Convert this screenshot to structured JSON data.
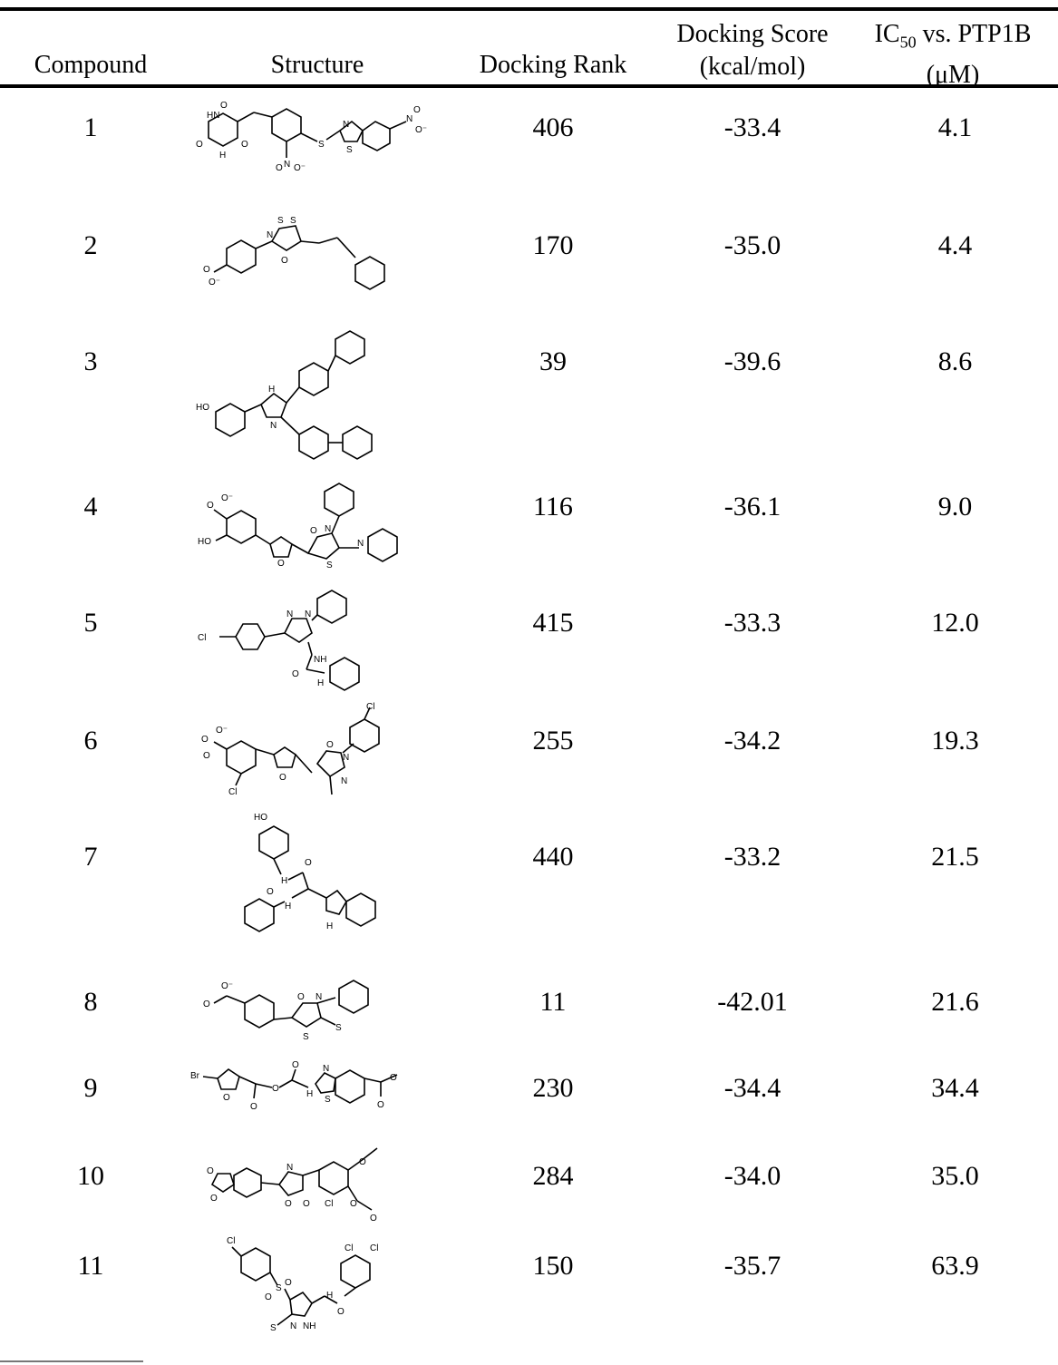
{
  "headers": {
    "compound": "Compound",
    "structure": "Structure",
    "rank": "Docking Rank",
    "score_line1": "Docking Score",
    "score_line2": "(kcal/mol)",
    "ic50_prefix": "IC",
    "ic50_sub": "50",
    "ic50_suffix": " vs. PTP1B",
    "ic50_line2": "(μM)"
  },
  "rows": [
    {
      "compound": "1",
      "rank": "406",
      "score": "-33.4",
      "ic50": "4.1"
    },
    {
      "compound": "2",
      "rank": "170",
      "score": "-35.0",
      "ic50": "4.4"
    },
    {
      "compound": "3",
      "rank": "39",
      "score": "-39.6",
      "ic50": "8.6"
    },
    {
      "compound": "4",
      "rank": "116",
      "score": "-36.1",
      "ic50": "9.0"
    },
    {
      "compound": "5",
      "rank": "415",
      "score": "-33.3",
      "ic50": "12.0"
    },
    {
      "compound": "6",
      "rank": "255",
      "score": "-34.2",
      "ic50": "19.3"
    },
    {
      "compound": "7",
      "rank": "440",
      "score": "-33.2",
      "ic50": "21.5"
    },
    {
      "compound": "8",
      "rank": "11",
      "score": "-42.01",
      "ic50": "21.6"
    },
    {
      "compound": "9",
      "rank": "230",
      "score": "-34.4",
      "ic50": "34.4"
    },
    {
      "compound": "10",
      "rank": "284",
      "score": "-34.0",
      "ic50": "35.0"
    },
    {
      "compound": "11",
      "rank": "150",
      "score": "-35.7",
      "ic50": "63.9"
    }
  ]
}
